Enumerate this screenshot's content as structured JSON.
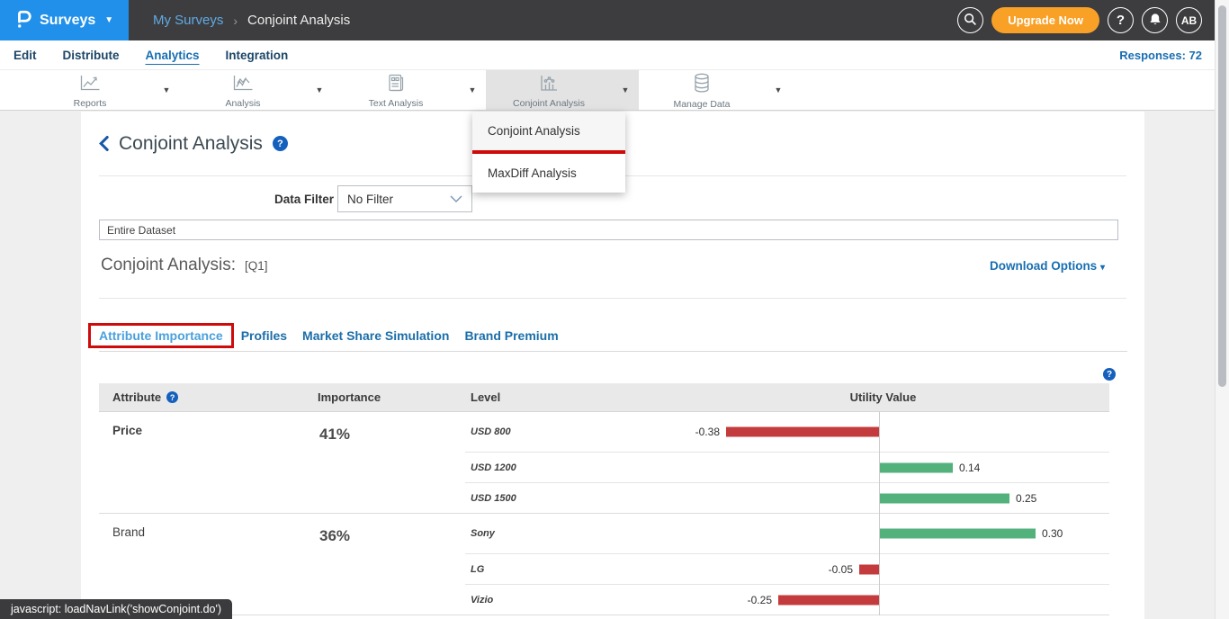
{
  "header": {
    "product": "Surveys",
    "breadcrumb": {
      "parent": "My Surveys",
      "separator": "›",
      "current": "Conjoint Analysis"
    },
    "upgrade_label": "Upgrade Now",
    "avatar_initials": "AB"
  },
  "nav": {
    "items": [
      "Edit",
      "Distribute",
      "Analytics",
      "Integration"
    ],
    "active": "Analytics",
    "responses_label": "Responses: 72"
  },
  "toolbar": {
    "items": [
      {
        "label": "Reports",
        "icon": "reports"
      },
      {
        "label": "Analysis",
        "icon": "analysis"
      },
      {
        "label": "Text Analysis",
        "icon": "text"
      },
      {
        "label": "Conjoint Analysis",
        "icon": "conjoint"
      },
      {
        "label": "Manage Data",
        "icon": "data"
      }
    ],
    "selected": "Conjoint Analysis"
  },
  "dropdown": {
    "items": [
      "Conjoint Analysis",
      "MaxDiff Analysis"
    ],
    "highlighted": "Conjoint Analysis"
  },
  "page": {
    "title": "Conjoint Analysis",
    "data_filter_label": "Data Filter",
    "data_filter_value": "No Filter",
    "dataset_value": "Entire Dataset",
    "analysis_label": "Conjoint Analysis:",
    "analysis_question": "[Q1]",
    "download_label": "Download Options",
    "tabs": [
      "Attribute Importance",
      "Profiles",
      "Market Share Simulation",
      "Brand Premium"
    ],
    "active_tab": "Attribute Importance"
  },
  "table": {
    "headers": [
      "Attribute",
      "Importance",
      "Level",
      "Utility Value"
    ],
    "groups": [
      {
        "attribute": "Price",
        "importance": "41%",
        "levels": [
          {
            "label": "USD 800",
            "value": -0.38
          },
          {
            "label": "USD 1200",
            "value": 0.14
          },
          {
            "label": "USD 1500",
            "value": 0.25
          }
        ]
      },
      {
        "attribute": "Brand",
        "importance": "36%",
        "levels": [
          {
            "label": "Sony",
            "value": 0.3
          },
          {
            "label": "LG",
            "value": -0.05
          },
          {
            "label": "Vizio",
            "value": -0.25
          }
        ]
      }
    ]
  },
  "status_bar": {
    "text": "javascript: loadNavLink('showConjoint.do')"
  },
  "colors": {
    "header_blue": "#2090ea",
    "header_dark": "#3d3d3f",
    "upgrade_orange": "#f9a126",
    "annotation_red": "#cf0a0a",
    "bar_positive": "#53b17c",
    "bar_negative": "#c43b3d",
    "link_blue": "#186eb2",
    "tab_active_blue": "#4aa0dc"
  }
}
